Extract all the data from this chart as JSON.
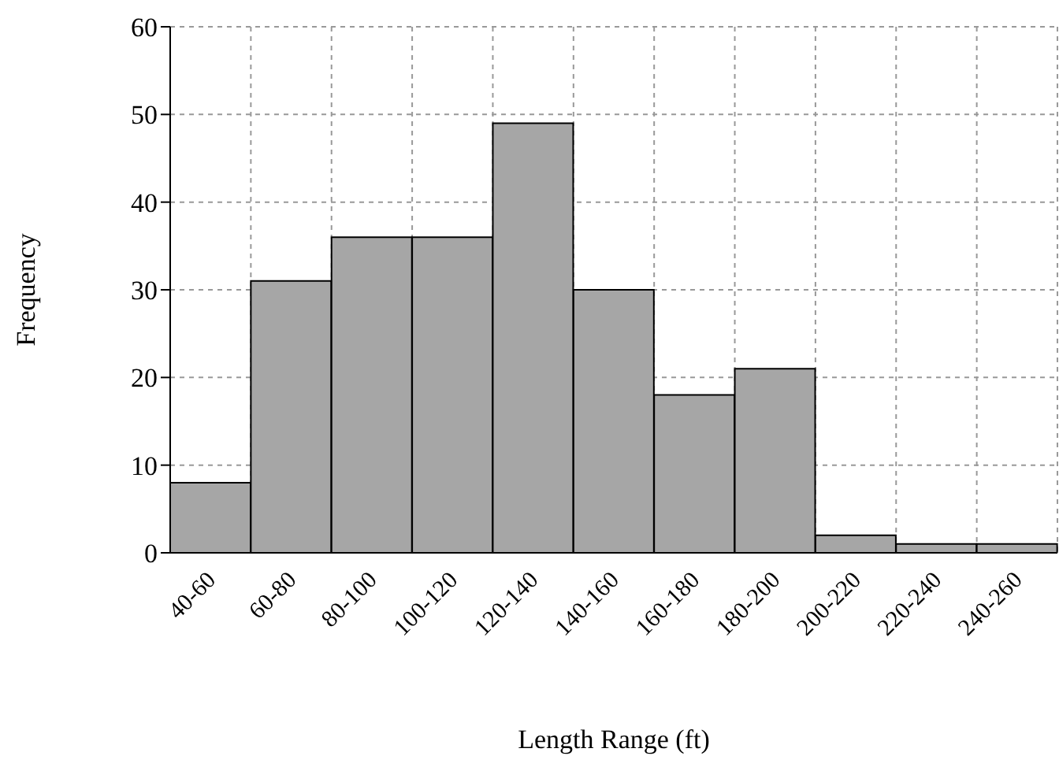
{
  "chart_data": {
    "type": "bar",
    "xlabel": "Length Range (ft)",
    "ylabel": "Frequency",
    "categories": [
      "40-60",
      "60-80",
      "80-100",
      "100-120",
      "120-140",
      "140-160",
      "160-180",
      "180-200",
      "200-220",
      "220-240",
      "240-260"
    ],
    "values": [
      8,
      31,
      36,
      36,
      49,
      30,
      18,
      21,
      2,
      1,
      1
    ],
    "color": "#a6a6a6",
    "ylim": [
      0,
      60
    ],
    "yticks": [
      0,
      10,
      20,
      30,
      40,
      50,
      60
    ],
    "grid": true
  }
}
